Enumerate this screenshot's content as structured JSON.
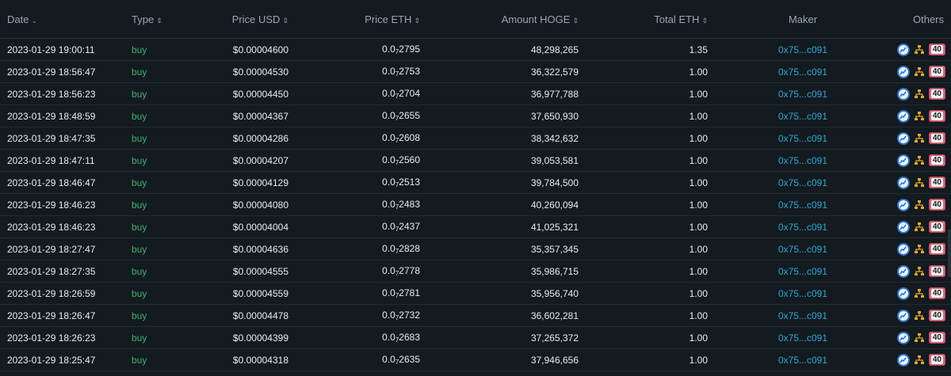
{
  "header": {
    "date": "Date",
    "date_sort": "⌄",
    "type": "Type",
    "price_usd": "Price USD",
    "price_eth": "Price ETH",
    "amount": "Amount HOGE",
    "total_eth": "Total ETH",
    "maker": "Maker",
    "others": "Others",
    "sort_icon": "⇕"
  },
  "rows": [
    {
      "date": "2023-01-29 19:00:11",
      "type": "buy",
      "usd": "$0.00004600",
      "eth_prefix": "0.0",
      "eth_sub": "7",
      "eth_tail": "2795",
      "amount": "48,298,265",
      "total": "1.35",
      "maker": "0x75...c091",
      "badge": "40"
    },
    {
      "date": "2023-01-29 18:56:47",
      "type": "buy",
      "usd": "$0.00004530",
      "eth_prefix": "0.0",
      "eth_sub": "7",
      "eth_tail": "2753",
      "amount": "36,322,579",
      "total": "1.00",
      "maker": "0x75...c091",
      "badge": "40"
    },
    {
      "date": "2023-01-29 18:56:23",
      "type": "buy",
      "usd": "$0.00004450",
      "eth_prefix": "0.0",
      "eth_sub": "7",
      "eth_tail": "2704",
      "amount": "36,977,788",
      "total": "1.00",
      "maker": "0x75...c091",
      "badge": "40"
    },
    {
      "date": "2023-01-29 18:48:59",
      "type": "buy",
      "usd": "$0.00004367",
      "eth_prefix": "0.0",
      "eth_sub": "7",
      "eth_tail": "2655",
      "amount": "37,650,930",
      "total": "1.00",
      "maker": "0x75...c091",
      "badge": "40"
    },
    {
      "date": "2023-01-29 18:47:35",
      "type": "buy",
      "usd": "$0.00004286",
      "eth_prefix": "0.0",
      "eth_sub": "7",
      "eth_tail": "2608",
      "amount": "38,342,632",
      "total": "1.00",
      "maker": "0x75...c091",
      "badge": "40"
    },
    {
      "date": "2023-01-29 18:47:11",
      "type": "buy",
      "usd": "$0.00004207",
      "eth_prefix": "0.0",
      "eth_sub": "7",
      "eth_tail": "2560",
      "amount": "39,053,581",
      "total": "1.00",
      "maker": "0x75...c091",
      "badge": "40"
    },
    {
      "date": "2023-01-29 18:46:47",
      "type": "buy",
      "usd": "$0.00004129",
      "eth_prefix": "0.0",
      "eth_sub": "7",
      "eth_tail": "2513",
      "amount": "39,784,500",
      "total": "1.00",
      "maker": "0x75...c091",
      "badge": "40"
    },
    {
      "date": "2023-01-29 18:46:23",
      "type": "buy",
      "usd": "$0.00004080",
      "eth_prefix": "0.0",
      "eth_sub": "7",
      "eth_tail": "2483",
      "amount": "40,260,094",
      "total": "1.00",
      "maker": "0x75...c091",
      "badge": "40"
    },
    {
      "date": "2023-01-29 18:46:23",
      "type": "buy",
      "usd": "$0.00004004",
      "eth_prefix": "0.0",
      "eth_sub": "7",
      "eth_tail": "2437",
      "amount": "41,025,321",
      "total": "1.00",
      "maker": "0x75...c091",
      "badge": "40"
    },
    {
      "date": "2023-01-29 18:27:47",
      "type": "buy",
      "usd": "$0.00004636",
      "eth_prefix": "0.0",
      "eth_sub": "7",
      "eth_tail": "2828",
      "amount": "35,357,345",
      "total": "1.00",
      "maker": "0x75...c091",
      "badge": "40"
    },
    {
      "date": "2023-01-29 18:27:35",
      "type": "buy",
      "usd": "$0.00004555",
      "eth_prefix": "0.0",
      "eth_sub": "7",
      "eth_tail": "2778",
      "amount": "35,986,715",
      "total": "1.00",
      "maker": "0x75...c091",
      "badge": "40"
    },
    {
      "date": "2023-01-29 18:26:59",
      "type": "buy",
      "usd": "$0.00004559",
      "eth_prefix": "0.0",
      "eth_sub": "7",
      "eth_tail": "2781",
      "amount": "35,956,740",
      "total": "1.00",
      "maker": "0x75...c091",
      "badge": "40"
    },
    {
      "date": "2023-01-29 18:26:47",
      "type": "buy",
      "usd": "$0.00004478",
      "eth_prefix": "0.0",
      "eth_sub": "7",
      "eth_tail": "2732",
      "amount": "36,602,281",
      "total": "1.00",
      "maker": "0x75...c091",
      "badge": "40"
    },
    {
      "date": "2023-01-29 18:26:23",
      "type": "buy",
      "usd": "$0.00004399",
      "eth_prefix": "0.0",
      "eth_sub": "7",
      "eth_tail": "2683",
      "amount": "37,265,372",
      "total": "1.00",
      "maker": "0x75...c091",
      "badge": "40"
    },
    {
      "date": "2023-01-29 18:25:47",
      "type": "buy",
      "usd": "$0.00004318",
      "eth_prefix": "0.0",
      "eth_sub": "7",
      "eth_tail": "2635",
      "amount": "37,946,656",
      "total": "1.00",
      "maker": "0x75...c091",
      "badge": "40"
    }
  ],
  "icons": {
    "chart": "chart-circle-icon",
    "tree": "hierarchy-icon"
  },
  "colors": {
    "background": "#131a20",
    "buy": "#3fb26e",
    "maker_link": "#2fa9d4",
    "badge": "#d66b7a"
  }
}
